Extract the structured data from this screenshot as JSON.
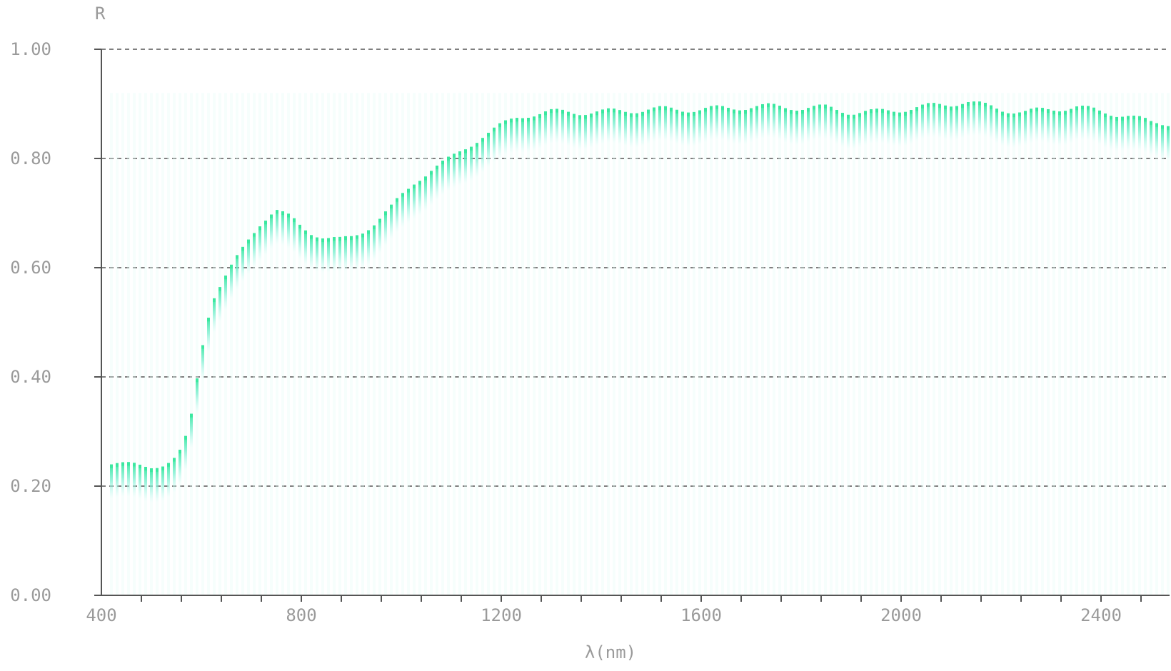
{
  "chart_data": {
    "type": "line",
    "title": "",
    "xlabel": "λ(nm)",
    "ylabel": "R",
    "xlim": [
      400,
      2500
    ],
    "ylim": [
      0,
      1
    ],
    "x_ticks": [
      "400",
      "800",
      "1200",
      "1600",
      "2000",
      "2400"
    ],
    "y_ticks": [
      "1.00",
      "0.80",
      "0.60",
      "0.40",
      "0.20",
      "0.00"
    ],
    "grid": "horizontal-dashed",
    "colors": {
      "series": "#3be8a0",
      "axis": "#555555",
      "text": "#9a9a9a"
    },
    "series": [
      {
        "x": [
          400,
          450,
          500,
          530,
          550,
          560,
          570,
          580,
          600,
          620,
          640,
          660,
          680,
          700,
          720,
          740,
          750,
          760,
          780,
          800,
          820,
          850,
          880,
          900,
          920,
          950,
          980,
          1000,
          1030,
          1060,
          1100,
          1130,
          1160,
          1200,
          1230,
          1250,
          1300,
          1350,
          1400,
          1500,
          1600,
          1650,
          1700,
          1750,
          1800,
          1850,
          1900,
          1950,
          2000,
          2050,
          2100,
          2130,
          2150,
          2200,
          2250,
          2300,
          2350,
          2400,
          2450,
          2500
        ],
        "y": [
          0.245,
          0.238,
          0.238,
          0.24,
          0.25,
          0.265,
          0.29,
          0.33,
          0.45,
          0.54,
          0.57,
          0.6,
          0.63,
          0.66,
          0.685,
          0.7,
          0.705,
          0.7,
          0.69,
          0.675,
          0.665,
          0.655,
          0.65,
          0.655,
          0.665,
          0.685,
          0.71,
          0.73,
          0.76,
          0.78,
          0.8,
          0.82,
          0.84,
          0.86,
          0.875,
          0.88,
          0.885,
          0.885,
          0.885,
          0.89,
          0.89,
          0.892,
          0.895,
          0.895,
          0.893,
          0.893,
          0.885,
          0.885,
          0.89,
          0.895,
          0.9,
          0.905,
          0.9,
          0.89,
          0.885,
          0.89,
          0.895,
          0.885,
          0.88,
          0.865
        ]
      }
    ]
  }
}
